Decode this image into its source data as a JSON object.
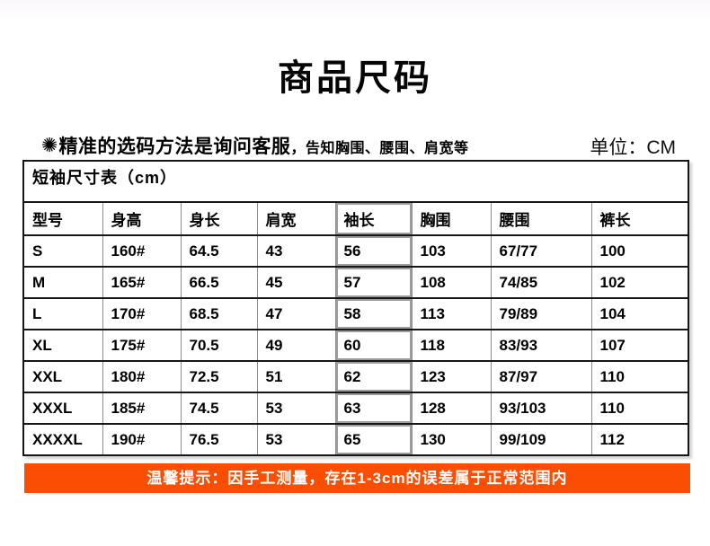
{
  "page": {
    "title": "商品尺码",
    "note": {
      "icon": "✺",
      "main": "精准的选码方法是询问客服",
      "sub": "，告知胸围、腰围、肩宽等"
    },
    "unit_label": "单位：CM"
  },
  "table": {
    "caption": "短袖尺寸表（cm）",
    "headers": [
      "型号",
      "身高",
      "身长",
      "肩宽",
      "袖长",
      "胸围",
      "腰围",
      "裤长"
    ],
    "highlight_column": 4,
    "rows": [
      [
        "S",
        "160#",
        "64.5",
        "43",
        "56",
        "103",
        "67/77",
        "100"
      ],
      [
        "M",
        "165#",
        "66.5",
        "45",
        "57",
        "108",
        "74/85",
        "102"
      ],
      [
        "L",
        "170#",
        "68.5",
        "47",
        "58",
        "113",
        "79/89",
        "104"
      ],
      [
        "XL",
        "175#",
        "70.5",
        "49",
        "60",
        "118",
        "83/93",
        "107"
      ],
      [
        "XXL",
        "180#",
        "72.5",
        "51",
        "62",
        "123",
        "87/97",
        "110"
      ],
      [
        "XXXL",
        "185#",
        "74.5",
        "53",
        "63",
        "128",
        "93/103",
        "110"
      ],
      [
        "XXXXL",
        "190#",
        "76.5",
        "53",
        "65",
        "130",
        "99/109",
        "112"
      ]
    ]
  },
  "footer": {
    "tip": "温馨提示：因手工测量，存在1-3cm的误差属于正常范围内"
  },
  "colors": {
    "accent_orange": "#fb4e05",
    "table_border": "#161616",
    "highlight_border": "#9c9c9c"
  }
}
